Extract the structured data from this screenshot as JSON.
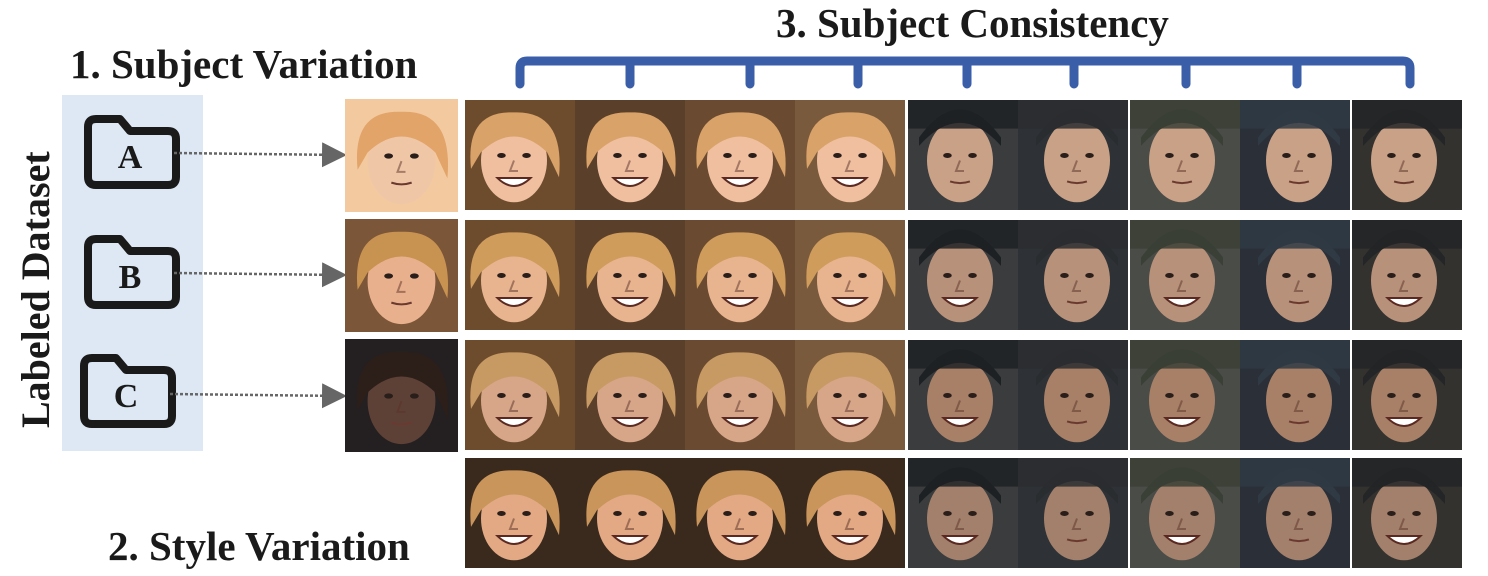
{
  "titles": {
    "subject_variation": "1. Subject Variation",
    "style_variation": "2. Style Variation",
    "subject_consistency": "3. Subject Consistency",
    "labeled_dataset": "Labeled Dataset"
  },
  "folders": [
    {
      "letter": "A",
      "icon": "folder-icon"
    },
    {
      "letter": "B",
      "icon": "folder-icon"
    },
    {
      "letter": "C",
      "icon": "folder-icon"
    }
  ],
  "colors": {
    "bracket": "#3a5ea8",
    "panel": "#dde8f4",
    "arrow": "#666666",
    "warm_bg": "#6b4a2c",
    "cool_bg": "#2c3036"
  },
  "sources": [
    {
      "name": "source-face-child",
      "skin": "#f0c7a6",
      "hair": "#e2a468",
      "bg": "#f3c9a0"
    },
    {
      "name": "source-face-young-man",
      "skin": "#e9b08d",
      "hair": "#c89250",
      "bg": "#7c5638"
    },
    {
      "name": "source-face-woman",
      "skin": "#5e4136",
      "hair": "#2c1f1a",
      "bg": "#242021"
    }
  ],
  "rows": [
    {
      "skin": "#efbfa0",
      "hair": "#d9a268",
      "cool_skin": "#c9a187"
    },
    {
      "skin": "#e8b490",
      "hair": "#cf9c5b",
      "cool_skin": "#b8917a"
    },
    {
      "skin": "#d7a688",
      "hair": "#c89a63",
      "cool_skin": "#a78067"
    },
    {
      "skin": "#e2a984",
      "hair": "#c9955a",
      "cool_skin": "#a3806b"
    }
  ]
}
